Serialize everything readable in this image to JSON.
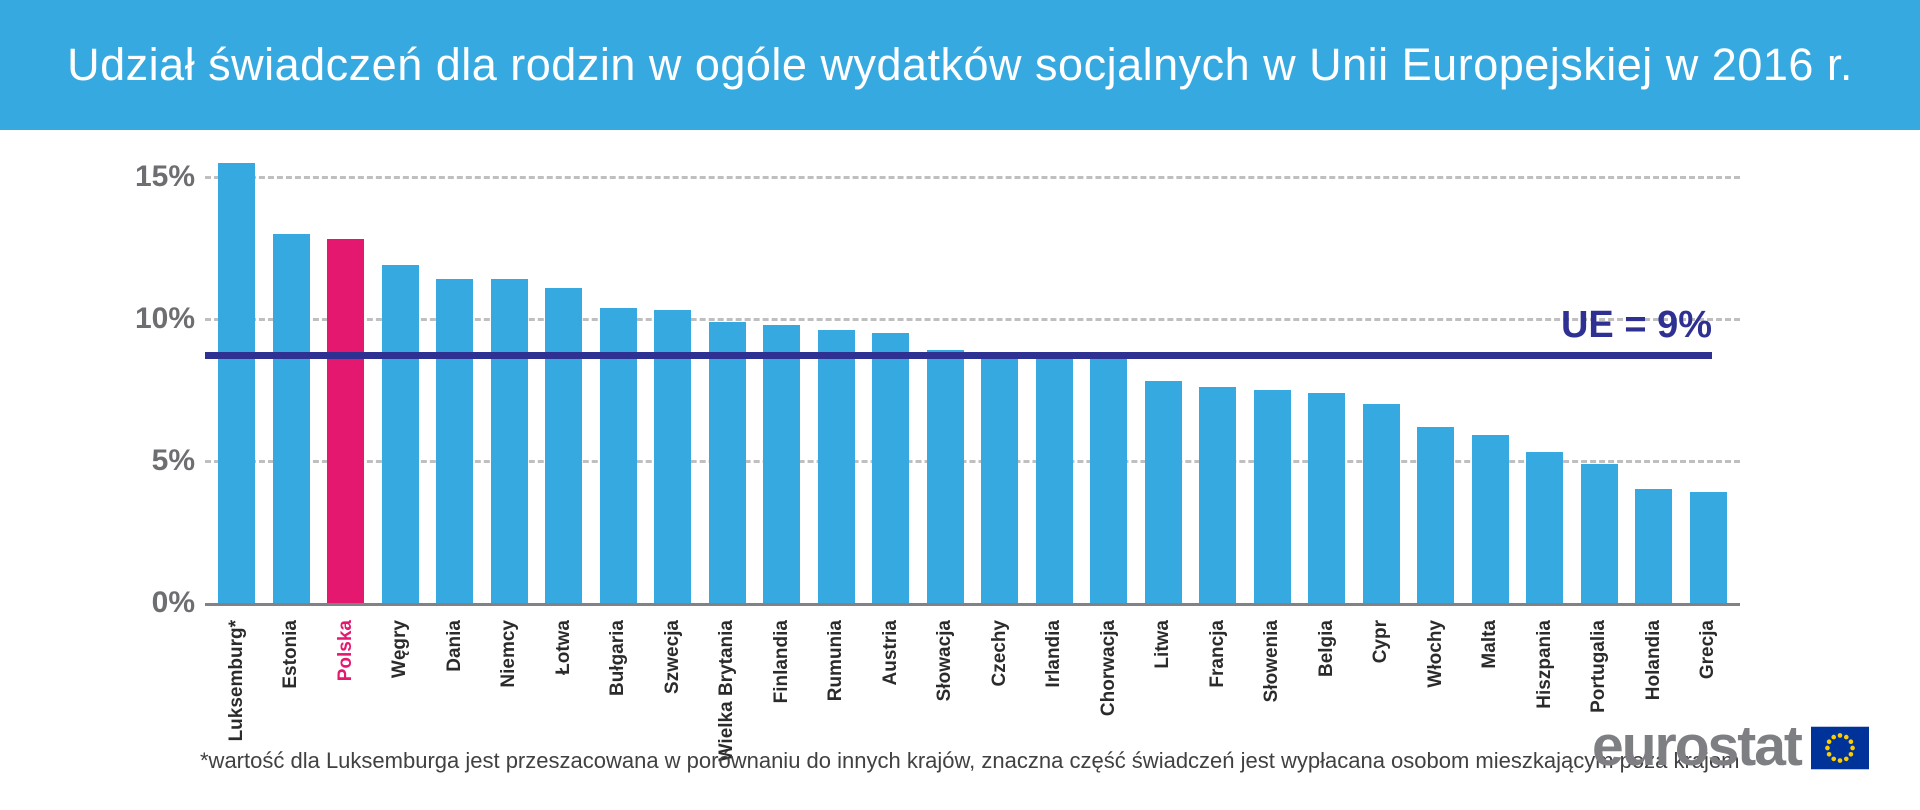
{
  "header": {
    "title": "Udział świadczeń dla rodzin w ogóle wydatków socjalnych w Unii Europejskiej w 2016 r.",
    "bg_color": "#36a9e1",
    "text_color": "#ffffff"
  },
  "chart_data": {
    "type": "bar",
    "title": "Udział świadczeń dla rodzin w ogóle wydatków socjalnych w Unii Europejskiej w 2016 r.",
    "unit": "%",
    "categories": [
      "Luksemburg*",
      "Estonia",
      "Polska",
      "Węgry",
      "Dania",
      "Niemcy",
      "Łotwa",
      "Bułgaria",
      "Szwecja",
      "Wielka Brytania",
      "Finlandia",
      "Rumunia",
      "Austria",
      "Słowacja",
      "Czechy",
      "Irlandia",
      "Chorwacja",
      "Litwa",
      "Francja",
      "Słowenia",
      "Belgia",
      "Cypr",
      "Włochy",
      "Malta",
      "Hiszpania",
      "Portugalia",
      "Holandia",
      "Grecja"
    ],
    "values": [
      15.5,
      13.0,
      12.8,
      11.9,
      11.4,
      11.4,
      11.1,
      10.4,
      10.3,
      9.9,
      9.8,
      9.6,
      9.5,
      8.9,
      8.8,
      8.6,
      8.6,
      7.8,
      7.6,
      7.5,
      7.4,
      7.0,
      6.2,
      5.9,
      5.3,
      4.9,
      4.0,
      3.9
    ],
    "bar_color": "#36a9e1",
    "highlight": {
      "category": "Polska",
      "color": "#e4186e"
    },
    "yticks": [
      {
        "value": 0,
        "label": "0%"
      },
      {
        "value": 5,
        "label": "5%"
      },
      {
        "value": 10,
        "label": "10%"
      },
      {
        "value": 15,
        "label": "15%"
      }
    ],
    "ylim": [
      0,
      15.7
    ],
    "grid": "dashed-horizontal",
    "legend": "none",
    "reference_line": {
      "label": "UE = 9%",
      "value": 8.7,
      "color": "#2e3192"
    }
  },
  "footnote": {
    "text": "*wartość dla Luksemburga jest przeszacowana w porównaniu do innych krajów, znaczna część świadczeń jest wypłacana osobom mieszkającym poza krajem"
  },
  "logo": {
    "text": "eurostat",
    "flag_blue": "#003399",
    "star_yellow": "#ffcc00"
  }
}
